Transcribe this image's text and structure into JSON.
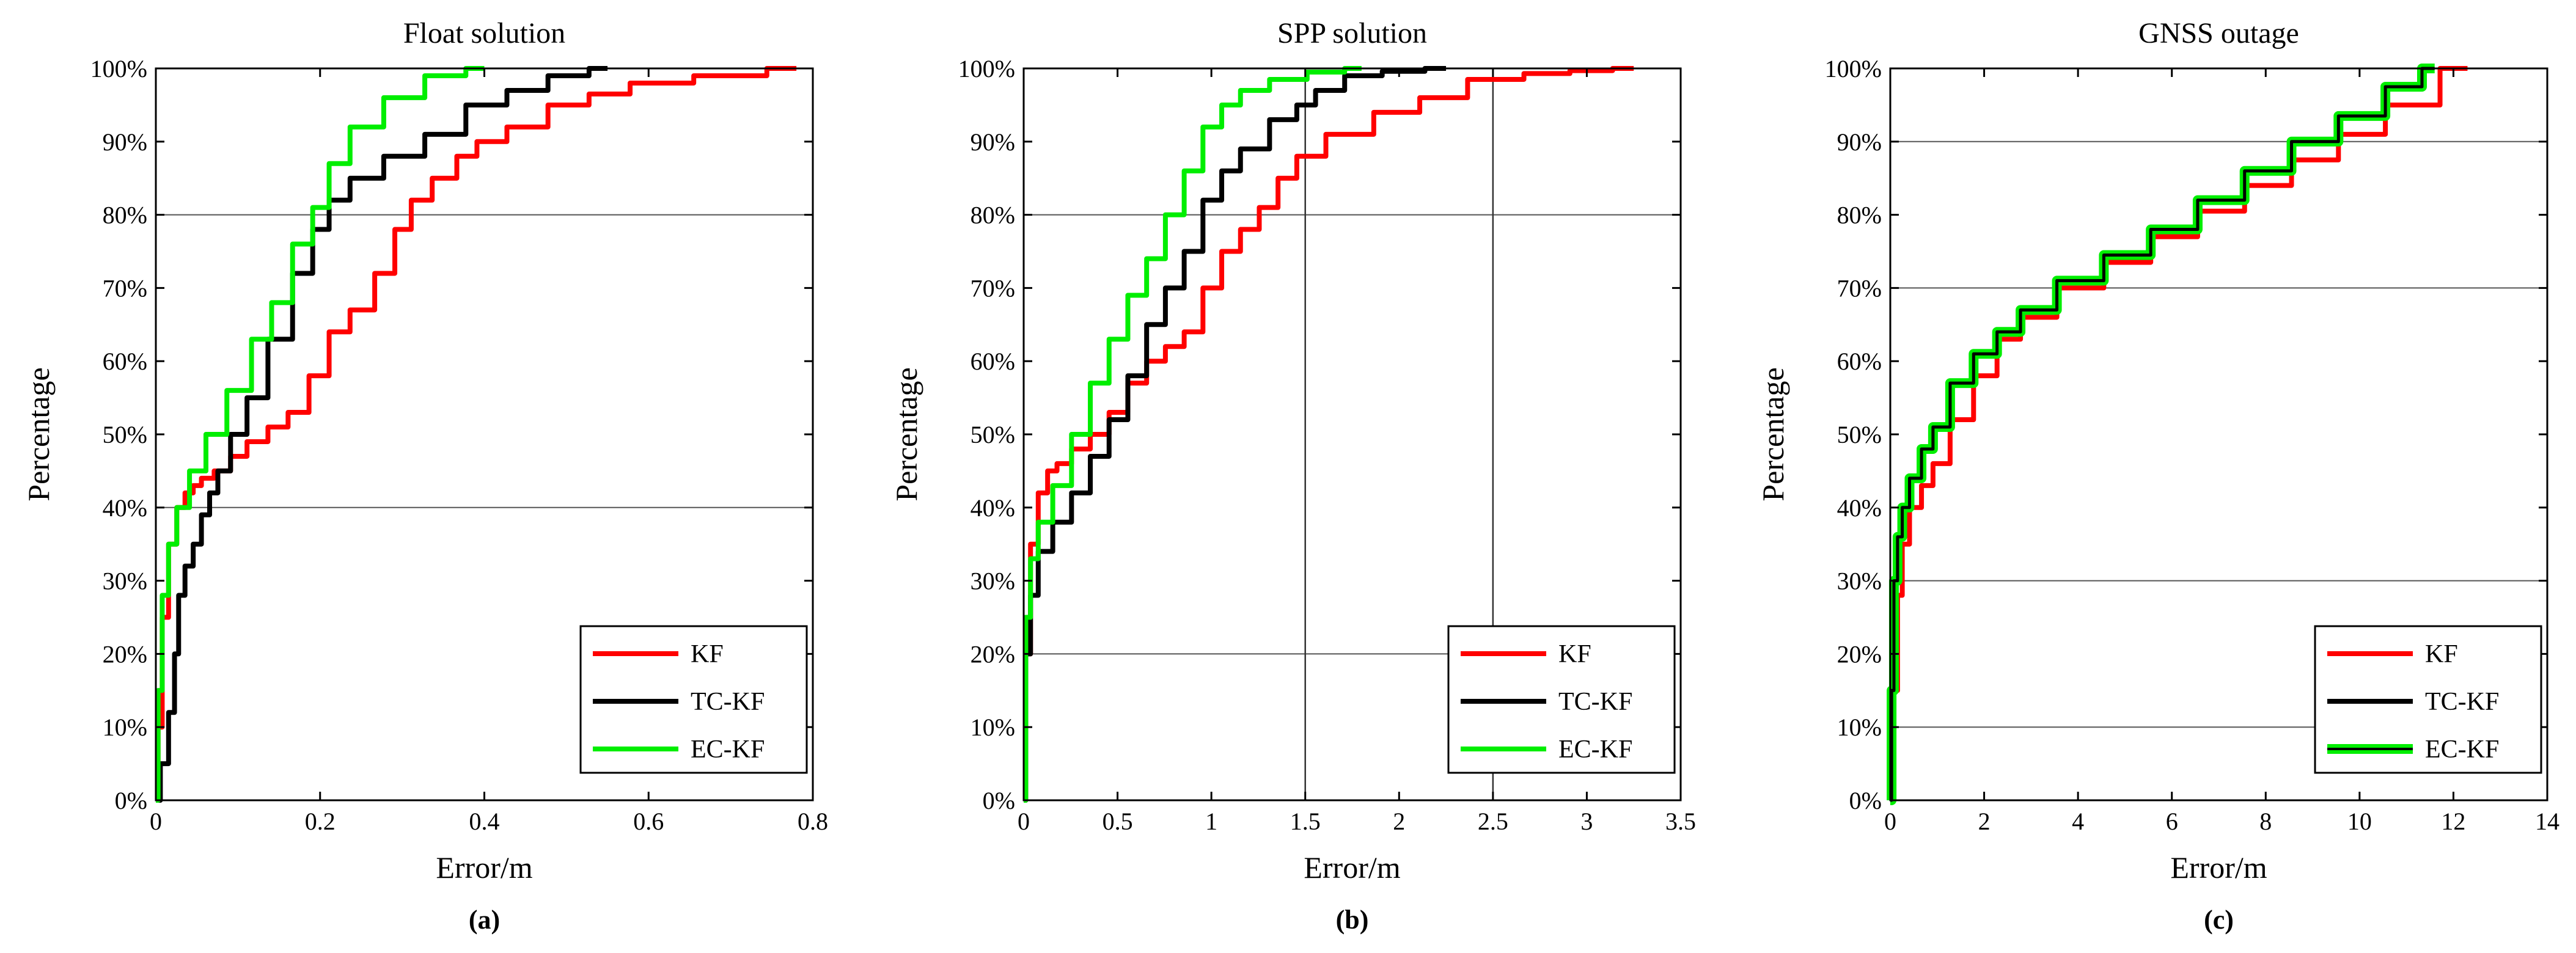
{
  "chart_data": [
    {
      "type": "line",
      "panel_label": "(a)",
      "title": "Float solution",
      "xlabel": "Error/m",
      "ylabel": "Percentage",
      "xlim": [
        0,
        0.8
      ],
      "ylim": [
        0,
        100
      ],
      "xticks": [
        0,
        0.2,
        0.4,
        0.6,
        0.8
      ],
      "xtick_labels": [
        "0",
        "0.2",
        "0.4",
        "0.6",
        "0.8"
      ],
      "yticks": [
        0,
        10,
        20,
        30,
        40,
        50,
        60,
        70,
        80,
        90,
        100
      ],
      "ytick_labels": [
        "0%",
        "10%",
        "20%",
        "30%",
        "40%",
        "50%",
        "60%",
        "70%",
        "80%",
        "90%",
        "100%"
      ],
      "hlines": [
        40,
        80
      ],
      "vlines": [],
      "legend_position": "bottom-right",
      "series": [
        {
          "name": "KF",
          "color": "#ff0000",
          "x": [
            0,
            0.005,
            0.01,
            0.02,
            0.03,
            0.04,
            0.05,
            0.06,
            0.08,
            0.1,
            0.12,
            0.15,
            0.17,
            0.2,
            0.22,
            0.25,
            0.28,
            0.3,
            0.32,
            0.35,
            0.38,
            0.4,
            0.45,
            0.5,
            0.55,
            0.6,
            0.7,
            0.78
          ],
          "y": [
            0,
            10,
            25,
            35,
            40,
            42,
            43,
            44,
            45,
            47,
            49,
            51,
            53,
            58,
            64,
            67,
            72,
            78,
            82,
            85,
            88,
            90,
            92,
            95,
            96.5,
            98,
            99,
            100
          ]
        },
        {
          "name": "TC-KF",
          "color": "#000000",
          "x": [
            0,
            0.01,
            0.02,
            0.025,
            0.03,
            0.04,
            0.05,
            0.06,
            0.07,
            0.08,
            0.1,
            0.12,
            0.15,
            0.18,
            0.2,
            0.22,
            0.25,
            0.3,
            0.35,
            0.4,
            0.45,
            0.5,
            0.55
          ],
          "y": [
            0,
            5,
            12,
            20,
            28,
            32,
            35,
            39,
            42,
            45,
            50,
            55,
            63,
            72,
            78,
            82,
            85,
            88,
            91,
            95,
            97,
            99,
            100
          ]
        },
        {
          "name": "EC-KF",
          "color": "#00ee00",
          "x": [
            0,
            0.005,
            0.01,
            0.02,
            0.03,
            0.05,
            0.07,
            0.1,
            0.13,
            0.15,
            0.18,
            0.2,
            0.22,
            0.25,
            0.3,
            0.35,
            0.4
          ],
          "y": [
            0,
            15,
            28,
            35,
            40,
            45,
            50,
            56,
            63,
            68,
            76,
            81,
            87,
            92,
            96,
            99,
            100
          ]
        }
      ]
    },
    {
      "type": "line",
      "panel_label": "(b)",
      "title": "SPP solution",
      "xlabel": "Error/m",
      "ylabel": "Percentage",
      "xlim": [
        0,
        3.5
      ],
      "ylim": [
        0,
        100
      ],
      "xticks": [
        0,
        0.5,
        1,
        1.5,
        2,
        2.5,
        3,
        3.5
      ],
      "xtick_labels": [
        "0",
        "0.5",
        "1",
        "1.5",
        "2",
        "2.5",
        "3",
        "3.5"
      ],
      "yticks": [
        0,
        10,
        20,
        30,
        40,
        50,
        60,
        70,
        80,
        90,
        100
      ],
      "ytick_labels": [
        "0%",
        "10%",
        "20%",
        "30%",
        "40%",
        "50%",
        "60%",
        "70%",
        "80%",
        "90%",
        "100%"
      ],
      "hlines": [
        20,
        80
      ],
      "vlines": [
        1.5,
        2.5
      ],
      "legend_position": "bottom-right",
      "series": [
        {
          "name": "KF",
          "color": "#ff0000",
          "x": [
            0,
            0.02,
            0.05,
            0.1,
            0.15,
            0.2,
            0.3,
            0.4,
            0.5,
            0.6,
            0.7,
            0.8,
            0.9,
            1.0,
            1.1,
            1.2,
            1.3,
            1.4,
            1.5,
            1.7,
            2.0,
            2.2,
            2.5,
            2.8,
            3.0,
            3.25
          ],
          "y": [
            0,
            20,
            35,
            42,
            45,
            46,
            48,
            50,
            53,
            57,
            60,
            62,
            64,
            70,
            75,
            78,
            81,
            85,
            88,
            91,
            94,
            96,
            98.5,
            99.3,
            99.7,
            100
          ]
        },
        {
          "name": "TC-KF",
          "color": "#000000",
          "x": [
            0,
            0.02,
            0.05,
            0.1,
            0.2,
            0.3,
            0.4,
            0.5,
            0.6,
            0.7,
            0.8,
            0.9,
            1.0,
            1.1,
            1.2,
            1.4,
            1.5,
            1.6,
            1.8,
            2.0,
            2.25
          ],
          "y": [
            0,
            20,
            28,
            34,
            38,
            42,
            47,
            52,
            58,
            65,
            70,
            75,
            82,
            86,
            89,
            93,
            95,
            97,
            99,
            99.6,
            100
          ]
        },
        {
          "name": "EC-KF",
          "color": "#00ee00",
          "x": [
            0,
            0.02,
            0.05,
            0.1,
            0.2,
            0.3,
            0.4,
            0.5,
            0.6,
            0.7,
            0.8,
            0.9,
            1.0,
            1.1,
            1.2,
            1.4,
            1.6,
            1.8
          ],
          "y": [
            0,
            25,
            33,
            38,
            43,
            50,
            57,
            63,
            69,
            74,
            80,
            86,
            92,
            95,
            97,
            98.5,
            99.5,
            100
          ]
        }
      ]
    },
    {
      "type": "line",
      "panel_label": "(c)",
      "title": "GNSS outage",
      "xlabel": "Error/m",
      "ylabel": "Percentage",
      "xlim": [
        0,
        14
      ],
      "ylim": [
        0,
        100
      ],
      "xticks": [
        0,
        2,
        4,
        6,
        8,
        10,
        12,
        14
      ],
      "xtick_labels": [
        "0",
        "2",
        "4",
        "6",
        "8",
        "10",
        "12",
        "14"
      ],
      "yticks": [
        0,
        10,
        20,
        30,
        40,
        50,
        60,
        70,
        80,
        90,
        100
      ],
      "ytick_labels": [
        "0%",
        "10%",
        "20%",
        "30%",
        "40%",
        "50%",
        "60%",
        "70%",
        "80%",
        "90%",
        "100%"
      ],
      "hlines": [
        10,
        30,
        70,
        90
      ],
      "vlines": [],
      "legend_position": "bottom-right",
      "series": [
        {
          "name": "KF",
          "color": "#ff0000",
          "x": [
            0,
            0.1,
            0.2,
            0.3,
            0.5,
            0.8,
            1.0,
            1.5,
            2.0,
            2.5,
            3.0,
            4.0,
            5.0,
            6.0,
            7.0,
            8.0,
            9.0,
            10.0,
            11.0,
            12.3
          ],
          "y": [
            0,
            15,
            28,
            35,
            40,
            43,
            46,
            52,
            58,
            63,
            66,
            70,
            73.5,
            77,
            80.5,
            84,
            87.5,
            91,
            95,
            100
          ]
        },
        {
          "name": "EC-KF",
          "color": "#00ee00",
          "x": [
            0,
            0.05,
            0.1,
            0.2,
            0.3,
            0.5,
            0.8,
            1.0,
            1.5,
            2.0,
            2.5,
            3.0,
            4.0,
            5.0,
            6.0,
            7.0,
            8.0,
            9.0,
            10.0,
            11.0,
            11.6
          ],
          "y": [
            0,
            15,
            30,
            36,
            40,
            44,
            48,
            51,
            57,
            61,
            64,
            67,
            71,
            74.5,
            78,
            82,
            86,
            90,
            93.5,
            97.5,
            100
          ]
        },
        {
          "name": "TC-KF",
          "color": "#000000",
          "x": [
            0,
            0.05,
            0.1,
            0.2,
            0.3,
            0.5,
            0.8,
            1.0,
            1.5,
            2.0,
            2.5,
            3.0,
            4.0,
            5.0,
            6.0,
            7.0,
            8.0,
            9.0,
            10.0,
            11.0,
            11.6
          ],
          "y": [
            0,
            15,
            30,
            36,
            40,
            44,
            48,
            51,
            57,
            61,
            64,
            67,
            71,
            74.5,
            78,
            82,
            86,
            90,
            93.5,
            97.5,
            100
          ]
        }
      ],
      "legend_order": [
        "KF",
        "TC-KF",
        "EC-KF"
      ]
    }
  ]
}
